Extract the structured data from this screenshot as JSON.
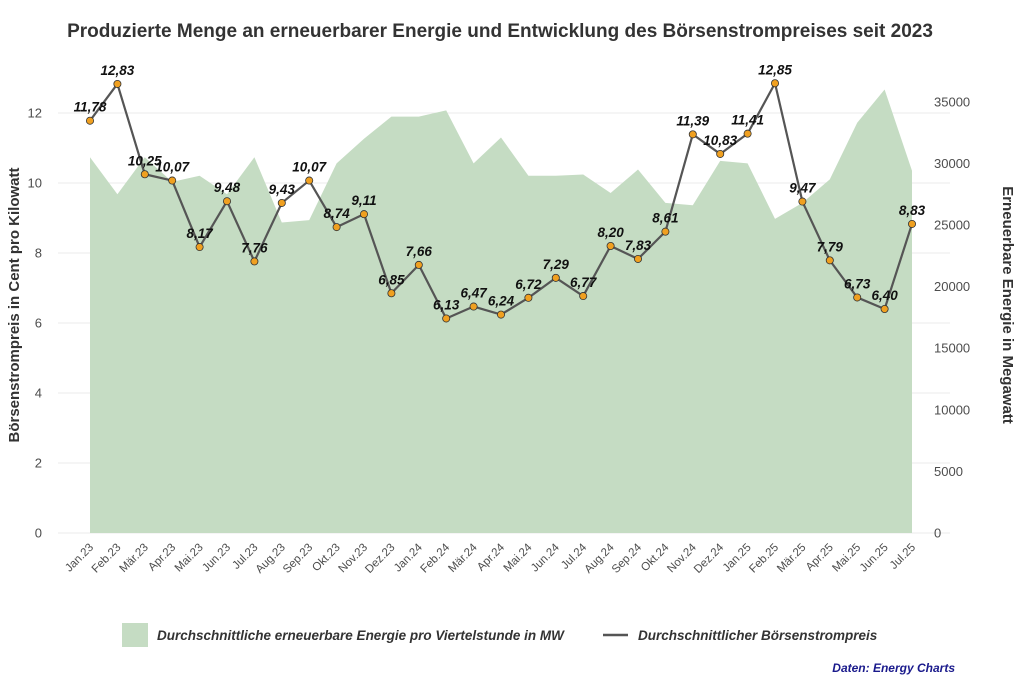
{
  "chart_data": {
    "type": "line",
    "title": "Produzierte Menge an erneuerbarer Energie und Entwicklung des Börsenstrompreises seit 2023",
    "categories": [
      "Jan.23",
      "Feb.23",
      "Mär.23",
      "Apr.23",
      "Mai.23",
      "Jun.23",
      "Jul.23",
      "Aug.23",
      "Sep.23",
      "Okt.23",
      "Nov.23",
      "Dez.23",
      "Jan.24",
      "Feb.24",
      "Mär.24",
      "Apr.24",
      "Mai.24",
      "Jun.24",
      "Jul.24",
      "Aug.24",
      "Sep.24",
      "Okt.24",
      "Nov.24",
      "Dez.24",
      "Jan.25",
      "Feb.25",
      "Mär.25",
      "Apr.25",
      "Mai.25",
      "Jun.25",
      "Jul.25"
    ],
    "series": [
      {
        "name": "Durchschnittliche erneuerbare Energie pro Viertelstunde in MW",
        "type": "area",
        "axis": "right",
        "color": "#c5dcc3",
        "values": [
          30500,
          27500,
          30500,
          28500,
          29000,
          27500,
          30500,
          25200,
          25400,
          30000,
          32000,
          33800,
          33800,
          34300,
          30000,
          32100,
          29000,
          29000,
          29100,
          27600,
          29500,
          26800,
          26600,
          30200,
          30000,
          25500,
          26800,
          28700,
          33300,
          36000,
          29400
        ]
      },
      {
        "name": "Durchschnittlicher Börsenstrompreis",
        "type": "line",
        "axis": "left",
        "color": "#555555",
        "marker_color": "#f0a020",
        "values": [
          11.78,
          12.83,
          10.25,
          10.07,
          8.17,
          9.48,
          7.76,
          9.43,
          10.07,
          8.74,
          9.11,
          6.85,
          7.66,
          6.13,
          6.47,
          6.24,
          6.72,
          7.29,
          6.77,
          8.2,
          7.83,
          8.61,
          11.39,
          10.83,
          11.41,
          12.85,
          9.47,
          7.79,
          6.73,
          6.4,
          8.83
        ],
        "labels": [
          "11,78",
          "12,83",
          "10,25",
          "10,07",
          "8,17",
          "9,48",
          "7,76",
          "9,43",
          "10,07",
          "8,74",
          "9,11",
          "6,85",
          "7,66",
          "6,13",
          "6,47",
          "6,24",
          "6,72",
          "7,29",
          "6,77",
          "8,20",
          "7,83",
          "8,61",
          "11,39",
          "10,83",
          "11,41",
          "12,85",
          "9,47",
          "7,79",
          "6,73",
          "6,40",
          "8,83"
        ]
      }
    ],
    "y_left": {
      "label": "Börsenstrompreis in Cent pro Kilowatt",
      "ylim": [
        0,
        13.2
      ],
      "ticks": [
        "0",
        "2",
        "4",
        "6",
        "8",
        "10",
        "12"
      ]
    },
    "y_right": {
      "label": "Erneuerbare Energie in Megawatt",
      "ylim": [
        0,
        37500
      ],
      "ticks": [
        "0",
        "5000",
        "10000",
        "15000",
        "20000",
        "25000",
        "30000",
        "35000"
      ]
    },
    "grid": true,
    "legend_position": "bottom",
    "source": "Daten: Energy Charts"
  }
}
